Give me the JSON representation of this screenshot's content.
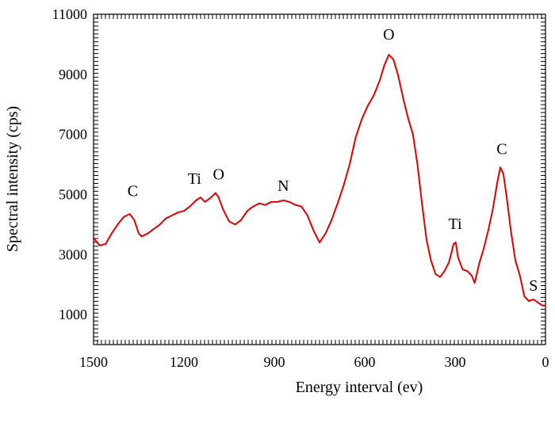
{
  "chart_data": {
    "type": "line",
    "title": "",
    "xlabel": "Energy interval (ev)",
    "ylabel": "Spectral intensity (cps)",
    "xlim": [
      1500,
      0
    ],
    "ylim": [
      0,
      11000
    ],
    "x_reversed": true,
    "xticks": [
      "1500",
      "1200",
      "900",
      "600",
      "300",
      "0"
    ],
    "yticks": [
      "1000",
      "3000",
      "5000",
      "7000",
      "9000",
      "11000"
    ],
    "grid": false,
    "legend": "none",
    "series": [
      {
        "color": "#e00000",
        "points": [
          [
            1500,
            3550
          ],
          [
            1480,
            3300
          ],
          [
            1460,
            3350
          ],
          [
            1440,
            3700
          ],
          [
            1420,
            4000
          ],
          [
            1400,
            4250
          ],
          [
            1380,
            4350
          ],
          [
            1365,
            4150
          ],
          [
            1350,
            3700
          ],
          [
            1340,
            3600
          ],
          [
            1320,
            3700
          ],
          [
            1300,
            3850
          ],
          [
            1280,
            4000
          ],
          [
            1260,
            4200
          ],
          [
            1240,
            4300
          ],
          [
            1220,
            4400
          ],
          [
            1200,
            4450
          ],
          [
            1180,
            4600
          ],
          [
            1160,
            4800
          ],
          [
            1145,
            4900
          ],
          [
            1130,
            4750
          ],
          [
            1110,
            4900
          ],
          [
            1095,
            5050
          ],
          [
            1085,
            4900
          ],
          [
            1070,
            4500
          ],
          [
            1050,
            4100
          ],
          [
            1030,
            4000
          ],
          [
            1010,
            4150
          ],
          [
            990,
            4450
          ],
          [
            970,
            4600
          ],
          [
            950,
            4700
          ],
          [
            930,
            4650
          ],
          [
            910,
            4750
          ],
          [
            890,
            4750
          ],
          [
            870,
            4800
          ],
          [
            850,
            4750
          ],
          [
            830,
            4650
          ],
          [
            810,
            4600
          ],
          [
            790,
            4300
          ],
          [
            770,
            3800
          ],
          [
            750,
            3400
          ],
          [
            730,
            3700
          ],
          [
            710,
            4150
          ],
          [
            690,
            4700
          ],
          [
            670,
            5300
          ],
          [
            650,
            6000
          ],
          [
            630,
            6900
          ],
          [
            610,
            7500
          ],
          [
            590,
            7950
          ],
          [
            570,
            8300
          ],
          [
            550,
            8800
          ],
          [
            535,
            9300
          ],
          [
            520,
            9650
          ],
          [
            505,
            9500
          ],
          [
            490,
            9000
          ],
          [
            470,
            8100
          ],
          [
            455,
            7500
          ],
          [
            440,
            7000
          ],
          [
            425,
            6000
          ],
          [
            410,
            4700
          ],
          [
            395,
            3500
          ],
          [
            380,
            2800
          ],
          [
            365,
            2350
          ],
          [
            350,
            2250
          ],
          [
            335,
            2450
          ],
          [
            320,
            2750
          ],
          [
            305,
            3350
          ],
          [
            298,
            3400
          ],
          [
            290,
            2900
          ],
          [
            275,
            2500
          ],
          [
            260,
            2450
          ],
          [
            245,
            2300
          ],
          [
            235,
            2050
          ],
          [
            220,
            2700
          ],
          [
            205,
            3200
          ],
          [
            190,
            3800
          ],
          [
            175,
            4500
          ],
          [
            160,
            5400
          ],
          [
            150,
            5900
          ],
          [
            140,
            5700
          ],
          [
            130,
            5000
          ],
          [
            115,
            3800
          ],
          [
            100,
            2800
          ],
          [
            85,
            2300
          ],
          [
            70,
            1600
          ],
          [
            55,
            1450
          ],
          [
            40,
            1500
          ],
          [
            25,
            1400
          ],
          [
            10,
            1300
          ],
          [
            0,
            1300
          ]
        ]
      }
    ],
    "annotations": [
      {
        "text": "C",
        "x": 1370,
        "y": 4950
      },
      {
        "text": "Ti",
        "x": 1165,
        "y": 5350
      },
      {
        "text": "O",
        "x": 1085,
        "y": 5500
      },
      {
        "text": "N",
        "x": 870,
        "y": 5120
      },
      {
        "text": "O",
        "x": 520,
        "y": 10150
      },
      {
        "text": "Ti",
        "x": 300,
        "y": 3850
      },
      {
        "text": "C",
        "x": 145,
        "y": 6350
      },
      {
        "text": "S",
        "x": 40,
        "y": 1800
      }
    ]
  }
}
